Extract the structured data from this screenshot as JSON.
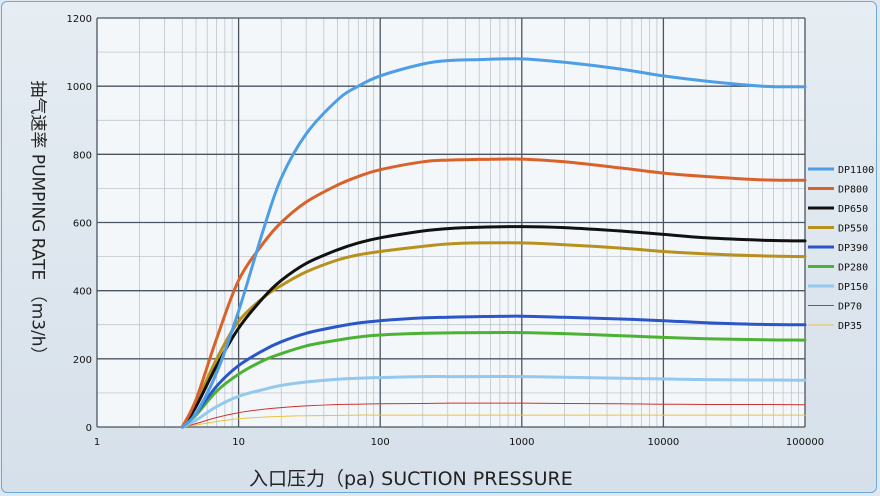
{
  "chart_data": {
    "type": "line",
    "xscale": "log",
    "ylabel": "抽气速率 PUMPING RATE （m3/h）",
    "xlabel": "入口压力（pa) SUCTION PRESSURE",
    "xlim": [
      1,
      100000
    ],
    "ylim": [
      0,
      1200
    ],
    "x_ticks": [
      "1",
      "10",
      "100",
      "1000",
      "10000",
      "100000"
    ],
    "y_ticks": [
      "0",
      "200",
      "400",
      "600",
      "800",
      "1000",
      "1200"
    ],
    "grid": true,
    "legend_position": "right",
    "x": [
      4,
      5,
      7,
      10,
      15,
      20,
      30,
      50,
      70,
      100,
      200,
      300,
      500,
      1000,
      2000,
      5000,
      10000,
      20000,
      50000,
      100000
    ],
    "series": [
      {
        "name": "DP1100",
        "color": "#4d9ee6",
        "width": 3,
        "values": [
          0,
          40,
          160,
          340,
          580,
          730,
          860,
          960,
          1000,
          1030,
          1065,
          1075,
          1078,
          1080,
          1070,
          1050,
          1030,
          1015,
          1000,
          998
        ]
      },
      {
        "name": "DP800",
        "color": "#d9622b",
        "width": 3,
        "values": [
          0,
          80,
          260,
          430,
          540,
          600,
          660,
          710,
          735,
          755,
          778,
          783,
          785,
          786,
          778,
          760,
          745,
          735,
          725,
          724
        ]
      },
      {
        "name": "DP650",
        "color": "#111111",
        "width": 3,
        "values": [
          0,
          60,
          180,
          290,
          380,
          430,
          480,
          520,
          540,
          555,
          575,
          582,
          586,
          588,
          585,
          575,
          565,
          555,
          548,
          546
        ]
      },
      {
        "name": "DP550",
        "color": "#b8901c",
        "width": 3,
        "values": [
          0,
          70,
          200,
          310,
          380,
          415,
          455,
          490,
          505,
          515,
          530,
          537,
          540,
          540,
          535,
          525,
          515,
          508,
          502,
          500
        ]
      },
      {
        "name": "DP390",
        "color": "#2a56c8",
        "width": 3,
        "values": [
          0,
          40,
          120,
          180,
          225,
          250,
          275,
          295,
          305,
          312,
          320,
          322,
          324,
          325,
          322,
          317,
          312,
          306,
          301,
          300
        ]
      },
      {
        "name": "DP280",
        "color": "#4bb233",
        "width": 3,
        "values": [
          0,
          35,
          105,
          155,
          195,
          215,
          238,
          255,
          264,
          270,
          275,
          276,
          277,
          277,
          274,
          268,
          263,
          259,
          256,
          255
        ]
      },
      {
        "name": "DP150",
        "color": "#94c8ee",
        "width": 3,
        "values": [
          0,
          20,
          60,
          90,
          110,
          122,
          132,
          140,
          143,
          145,
          148,
          148,
          148,
          148,
          146,
          143,
          141,
          139,
          138,
          137
        ]
      },
      {
        "name": "DP70",
        "color": "#cc3333",
        "width": 1,
        "values": [
          0,
          10,
          28,
          42,
          52,
          57,
          62,
          66,
          67,
          68,
          69,
          70,
          70,
          70,
          69,
          68,
          67,
          66,
          66,
          65
        ]
      },
      {
        "name": "DP35",
        "color": "#e8c440",
        "width": 1,
        "values": [
          0,
          6,
          16,
          24,
          29,
          31,
          33,
          34,
          35,
          35,
          35,
          35,
          35,
          35,
          35,
          35,
          35,
          35,
          35,
          35
        ]
      }
    ]
  }
}
